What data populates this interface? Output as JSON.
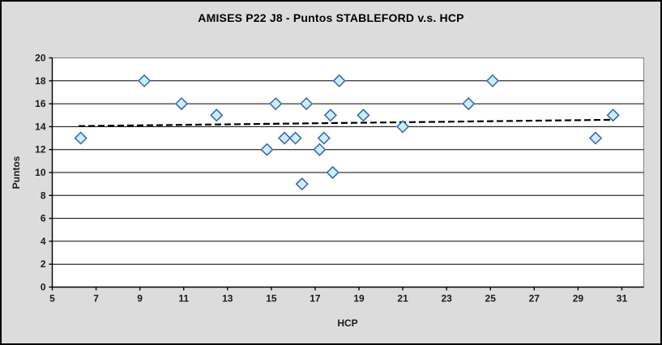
{
  "chart_data": {
    "type": "scatter",
    "title": "AMISES P22 J8 - Puntos STABLEFORD v.s. HCP",
    "xlabel": "HCP",
    "ylabel": "Puntos",
    "xlim": [
      5,
      32
    ],
    "ylim": [
      0,
      20
    ],
    "x_ticks": [
      5,
      7,
      9,
      11,
      13,
      15,
      17,
      19,
      21,
      23,
      25,
      27,
      29,
      31
    ],
    "y_ticks": [
      0,
      2,
      4,
      6,
      8,
      10,
      12,
      14,
      16,
      18,
      20
    ],
    "grid": "horizontal-only",
    "legend": "none",
    "points": [
      [
        6.3,
        13
      ],
      [
        9.2,
        18
      ],
      [
        10.9,
        16
      ],
      [
        12.5,
        15
      ],
      [
        14.8,
        12
      ],
      [
        15.2,
        16
      ],
      [
        15.6,
        13
      ],
      [
        16.1,
        13
      ],
      [
        16.4,
        9
      ],
      [
        16.6,
        16
      ],
      [
        17.2,
        12
      ],
      [
        17.4,
        13
      ],
      [
        17.7,
        15
      ],
      [
        17.8,
        10
      ],
      [
        18.1,
        18
      ],
      [
        19.2,
        15
      ],
      [
        21.0,
        14
      ],
      [
        24.0,
        16
      ],
      [
        25.1,
        18
      ],
      [
        29.8,
        13
      ],
      [
        30.6,
        15
      ]
    ],
    "trendline": {
      "type": "linear",
      "style": "dashed",
      "x_start": 6.2,
      "y_start": 14.05,
      "x_end": 30.5,
      "y_end": 14.6
    },
    "marker": {
      "shape": "diamond",
      "size": 14
    },
    "colors": {
      "background": "#DCDCDC",
      "plot_background": "#FFFFFF",
      "plot_border": "#808080",
      "gridline": "#000000",
      "axis": "#000000",
      "marker_fill": "#CCF0FA",
      "marker_stroke": "#4169B4",
      "trendline": "#000000",
      "text": "#1A1A1A"
    }
  }
}
